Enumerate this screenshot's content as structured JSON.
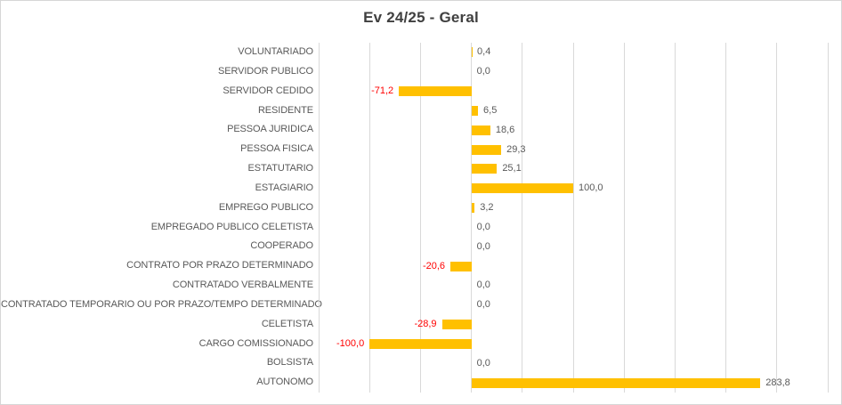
{
  "chart_data": {
    "type": "bar",
    "orientation": "horizontal",
    "title": "Ev 24/25 - Geral",
    "categories": [
      "VOLUNTARIADO",
      "SERVIDOR PUBLICO",
      "SERVIDOR CEDIDO",
      "RESIDENTE",
      "PESSOA JURIDICA",
      "PESSOA FISICA",
      "ESTATUTARIO",
      "ESTAGIARIO",
      "EMPREGO PUBLICO",
      "EMPREGADO PUBLICO CELETISTA",
      "COOPERADO",
      "CONTRATO POR PRAZO DETERMINADO",
      "CONTRATADO VERBALMENTE",
      "CONTRATADO TEMPORARIO OU POR PRAZO/TEMPO DETERMINADO",
      "CELETISTA",
      "CARGO COMISSIONADO",
      "BOLSISTA",
      "AUTONOMO"
    ],
    "values": [
      0.4,
      0.0,
      -71.2,
      6.5,
      18.6,
      29.3,
      25.1,
      100.0,
      3.2,
      0.0,
      0.0,
      -20.6,
      0.0,
      0.0,
      -28.9,
      -100.0,
      0.0,
      283.8
    ],
    "value_labels": [
      "0,4",
      "0,0",
      "-71,2",
      "6,5",
      "18,6",
      "29,3",
      "25,1",
      "100,0",
      "3,2",
      "0,0",
      "0,0",
      "-20,6",
      "0,0",
      "0,0",
      "-28,9",
      "-100,0",
      "0,0",
      "283,8"
    ],
    "xlim": [
      -150,
      350
    ],
    "gridline_step": 50,
    "grid": true,
    "axis_tick_labels_visible": false,
    "legend": "none",
    "bar_color": "#FFC000",
    "positive_label_color": "#595959",
    "negative_label_color": "#FF0000",
    "title_color": "#404040",
    "gridline_color": "#D9D9D9"
  }
}
